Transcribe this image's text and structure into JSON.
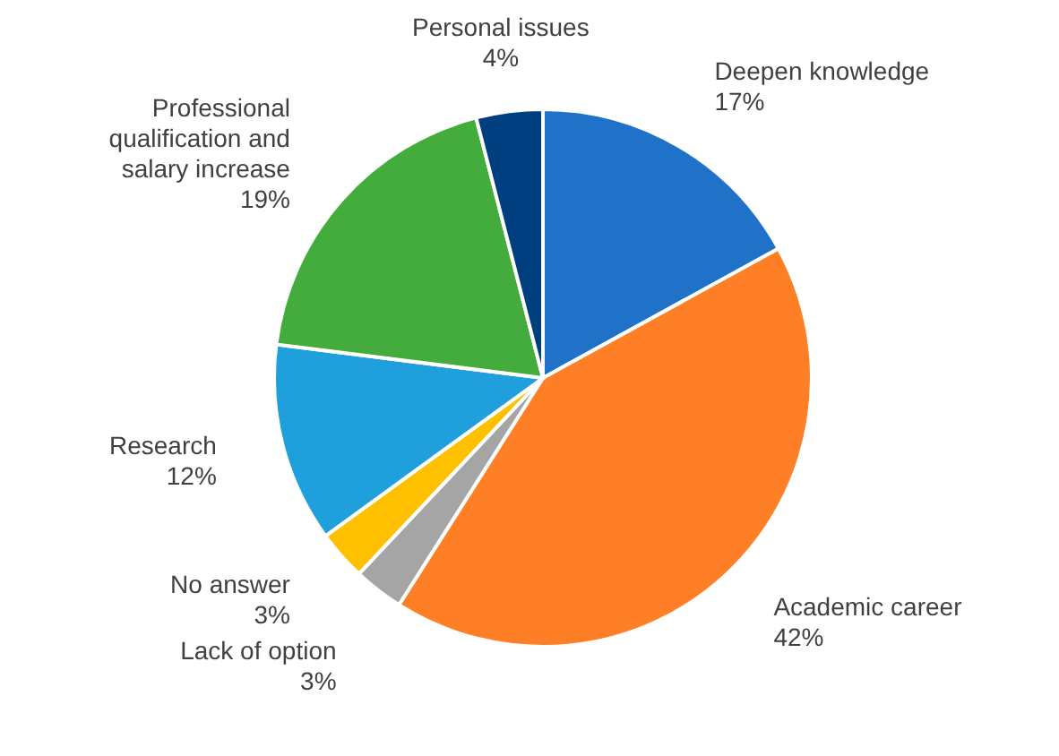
{
  "chart_data": {
    "type": "pie",
    "categories": [
      "Deepen knowledge",
      "Academic career",
      "Lack of option",
      "No answer",
      "Research",
      "Professional qualification and salary increase",
      "Personal issues"
    ],
    "values": [
      17,
      42,
      3,
      3,
      12,
      19,
      4
    ],
    "value_labels": [
      "17%",
      "42%",
      "3%",
      "3%",
      "12%",
      "19%",
      "4%"
    ],
    "colors": [
      "#1f72c8",
      "#ff7f27",
      "#a5a5a5",
      "#ffc000",
      "#1f9fdb",
      "#43ac3d",
      "#003f7f"
    ]
  }
}
